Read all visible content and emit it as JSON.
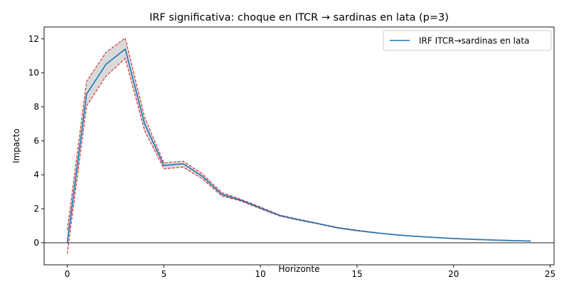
{
  "chart_data": {
    "type": "line",
    "title": "IRF significativa: choque en ITCR → sardinas en lata (p=3)",
    "xlabel": "Horizonte",
    "ylabel": "Impacto",
    "xlim": [
      -1.2,
      25.2
    ],
    "ylim": [
      -1.3,
      12.7
    ],
    "x_ticks": [
      0,
      5,
      10,
      15,
      20,
      25
    ],
    "y_ticks": [
      0,
      2,
      4,
      6,
      8,
      10,
      12
    ],
    "grid": false,
    "zero_line": true,
    "legend_position": "top-right",
    "x": [
      0,
      1,
      2,
      3,
      4,
      5,
      6,
      7,
      8,
      9,
      10,
      11,
      12,
      13,
      14,
      15,
      16,
      17,
      18,
      19,
      20,
      21,
      22,
      23,
      24
    ],
    "series": [
      {
        "name": "IRF ITCR→sardinas en lata",
        "color": "#1f77b4",
        "values": [
          0.0,
          8.75,
          10.5,
          11.4,
          7.0,
          4.55,
          4.65,
          3.9,
          2.85,
          2.5,
          2.05,
          1.6,
          1.35,
          1.12,
          0.88,
          0.72,
          0.58,
          0.47,
          0.38,
          0.31,
          0.25,
          0.2,
          0.16,
          0.13,
          0.1
        ],
        "lower": [
          -0.65,
          8.05,
          9.8,
          10.85,
          6.6,
          4.35,
          4.45,
          3.75,
          2.75,
          2.45,
          2.0,
          1.57,
          1.32,
          1.1,
          0.86,
          0.7,
          0.57,
          0.46,
          0.37,
          0.3,
          0.24,
          0.19,
          0.15,
          0.12,
          0.09
        ],
        "upper": [
          0.75,
          9.5,
          11.2,
          12.05,
          7.4,
          4.7,
          4.8,
          4.05,
          2.95,
          2.55,
          2.1,
          1.63,
          1.38,
          1.14,
          0.9,
          0.74,
          0.6,
          0.48,
          0.39,
          0.32,
          0.26,
          0.21,
          0.17,
          0.14,
          0.11
        ],
        "band_fill": "#d3d3d3",
        "band_edge_color": "#d62728"
      }
    ]
  }
}
